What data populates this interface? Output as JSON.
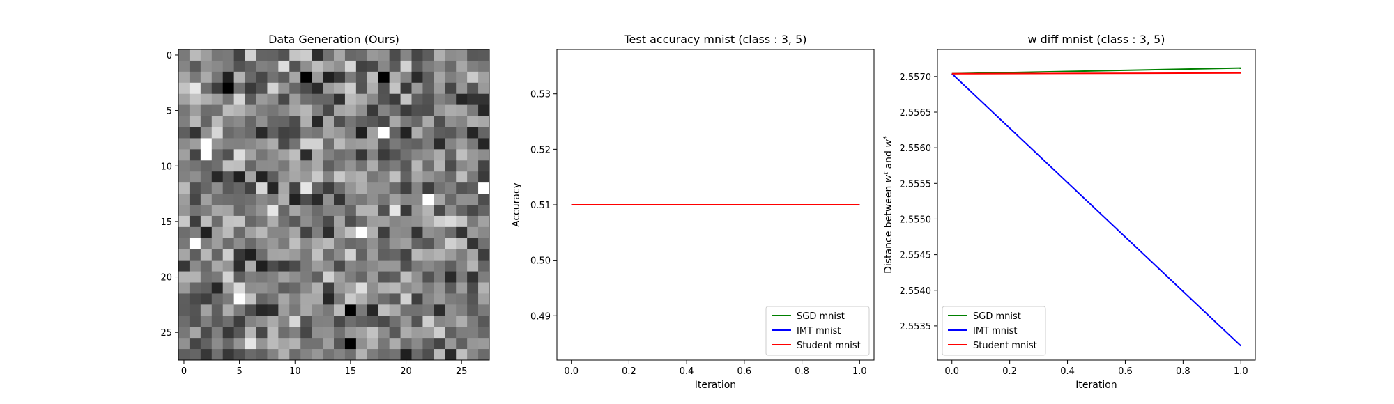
{
  "chart_data": [
    {
      "type": "heatmap",
      "title": "Data Generation (Ours)",
      "xlabel": "",
      "ylabel": "",
      "colormap": "gray",
      "shape": [
        28,
        28
      ],
      "value_range": [
        0,
        1
      ],
      "xticks": [
        0,
        5,
        10,
        15,
        20,
        25
      ],
      "yticks": [
        0,
        5,
        10,
        15,
        20,
        25
      ],
      "seed": 7,
      "dark_cells": [
        [
          2,
          11
        ],
        [
          2,
          18
        ],
        [
          3,
          4
        ],
        [
          23,
          15
        ],
        [
          26,
          15
        ]
      ],
      "bright_cells": [
        [
          8,
          2
        ],
        [
          9,
          2
        ],
        [
          13,
          22
        ],
        [
          12,
          27
        ],
        [
          17,
          1
        ],
        [
          22,
          5
        ],
        [
          16,
          16
        ],
        [
          7,
          18
        ]
      ]
    },
    {
      "type": "line",
      "title": "Test accuracy mnist (class : 3, 5)",
      "xlabel": "Iteration",
      "ylabel": "Accuracy",
      "xlim": [
        -0.05,
        1.05
      ],
      "ylim": [
        0.482,
        0.538
      ],
      "xticks": [
        0.0,
        0.2,
        0.4,
        0.6,
        0.8,
        1.0
      ],
      "yticks": [
        0.49,
        0.5,
        0.51,
        0.52,
        0.53
      ],
      "x": [
        0,
        1
      ],
      "series": [
        {
          "name": "SGD mnist",
          "color": "#008000",
          "values": [
            0.51,
            0.51
          ]
        },
        {
          "name": "IMT mnist",
          "color": "#0000ff",
          "values": [
            0.51,
            0.51
          ]
        },
        {
          "name": "Student mnist",
          "color": "#ff0000",
          "values": [
            0.51,
            0.51
          ]
        }
      ],
      "legend": "lower-right"
    },
    {
      "type": "line",
      "title": "w diff mnist (class : 3, 5)",
      "xlabel": "Iteration",
      "ylabel": "Distance between w^t and w^*",
      "ylabel_parts": [
        "Distance between ",
        "w",
        "t",
        " and ",
        "w",
        "*"
      ],
      "xlim": [
        -0.05,
        1.05
      ],
      "ylim": [
        2.55302,
        2.55738
      ],
      "xticks": [
        0.0,
        0.2,
        0.4,
        0.6,
        0.8,
        1.0
      ],
      "yticks": [
        2.5535,
        2.554,
        2.5545,
        2.555,
        2.5555,
        2.556,
        2.5565,
        2.557
      ],
      "x": [
        0,
        1
      ],
      "series": [
        {
          "name": "SGD mnist",
          "color": "#008000",
          "values": [
            2.55704,
            2.55712
          ]
        },
        {
          "name": "IMT mnist",
          "color": "#0000ff",
          "values": [
            2.55704,
            2.55322
          ]
        },
        {
          "name": "Student mnist",
          "color": "#ff0000",
          "values": [
            2.55704,
            2.55705
          ]
        }
      ],
      "legend": "lower-left"
    }
  ]
}
